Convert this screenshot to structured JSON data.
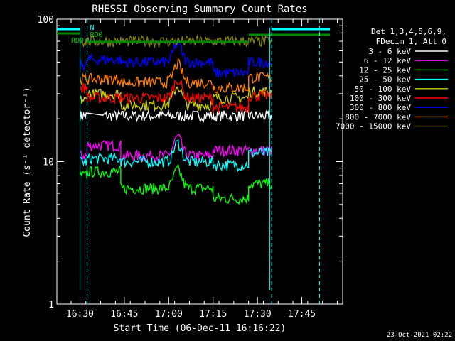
{
  "chart_data": {
    "type": "line",
    "title": "RHESSI Observing Summary Count Rates",
    "xlabel": "Start Time (06-Dec-11 16:16:22)",
    "ylabel": "Count Rate (s⁻¹ detector⁻¹)",
    "yscale": "log",
    "ylim": [
      1,
      100
    ],
    "xlim_minutes": [
      16.37,
      17.98
    ],
    "x_ticks": [
      "16:30",
      "16:45",
      "17:00",
      "17:15",
      "17:30",
      "17:45"
    ],
    "x_tick_values": [
      16.5,
      16.75,
      17.0,
      17.25,
      17.5,
      17.75
    ],
    "y_ticks": [
      "1",
      "10",
      "100"
    ],
    "y_tick_values": [
      1,
      10,
      100
    ],
    "legend": {
      "header": [
        "Det 1,3,4,5,6,9,",
        "FDecim 1, Att 0"
      ],
      "placement": "right"
    },
    "annotations": [
      {
        "text": "N",
        "color": "#00ffff"
      },
      {
        "text": "RD0",
        "color": "#00cc00"
      },
      {
        "text": "RD0",
        "color": "#00cc00"
      }
    ],
    "timestamp": "23-Oct-2021 02:22",
    "series": [
      {
        "name": "3 - 6 keV",
        "color": "#ffffff",
        "segments": [
          [
            16.5,
            16.54,
            21
          ],
          [
            16.63,
            16.73,
            21
          ],
          [
            16.73,
            17.25,
            21
          ],
          [
            17.25,
            17.45,
            21
          ],
          [
            17.45,
            17.55,
            21
          ],
          [
            17.55,
            17.58,
            21
          ]
        ]
      },
      {
        "name": "6 - 12 keV",
        "color": "#ff00ff",
        "segments": [
          [
            16.5,
            16.54,
            11
          ],
          [
            16.54,
            16.73,
            13
          ],
          [
            16.73,
            17.25,
            11
          ],
          [
            17.25,
            17.45,
            12
          ],
          [
            17.45,
            17.58,
            12
          ]
        ]
      },
      {
        "name": "12 - 25 keV",
        "color": "#00ff00",
        "segments": [
          [
            16.5,
            16.54,
            8
          ],
          [
            16.54,
            16.73,
            8.5
          ],
          [
            16.73,
            17.25,
            6.5
          ],
          [
            17.25,
            17.45,
            5.5
          ],
          [
            17.45,
            17.58,
            7
          ]
        ]
      },
      {
        "name": "25 - 50 keV",
        "color": "#00ffff",
        "segments": [
          [
            16.5,
            16.54,
            10
          ],
          [
            16.54,
            16.73,
            10.5
          ],
          [
            16.73,
            17.25,
            10
          ],
          [
            17.25,
            17.45,
            9.5
          ],
          [
            17.45,
            17.58,
            11.5
          ]
        ]
      },
      {
        "name": "50 - 100 keV",
        "color": "#cccc00",
        "segments": [
          [
            16.5,
            16.54,
            27
          ],
          [
            16.54,
            16.73,
            30
          ],
          [
            16.73,
            17.25,
            25
          ],
          [
            17.25,
            17.45,
            28
          ],
          [
            17.45,
            17.58,
            31
          ]
        ]
      },
      {
        "name": "100 - 300 keV",
        "color": "#ff0000",
        "segments": [
          [
            16.5,
            16.54,
            33
          ],
          [
            16.54,
            16.73,
            28
          ],
          [
            16.73,
            17.25,
            28
          ],
          [
            17.25,
            17.45,
            24
          ],
          [
            17.45,
            17.58,
            29
          ]
        ]
      },
      {
        "name": "300 - 800 keV",
        "color": "#0000ff",
        "segments": [
          [
            16.5,
            16.54,
            48
          ],
          [
            16.54,
            16.73,
            52
          ],
          [
            16.73,
            17.25,
            50
          ],
          [
            17.25,
            17.45,
            42
          ],
          [
            17.45,
            17.58,
            50
          ]
        ]
      },
      {
        "name": "800 - 7000 keV",
        "color": "#ff8000",
        "segments": [
          [
            16.5,
            16.54,
            38
          ],
          [
            16.54,
            16.73,
            38
          ],
          [
            16.73,
            17.25,
            36
          ],
          [
            17.25,
            17.45,
            33
          ],
          [
            17.45,
            17.58,
            39
          ]
        ]
      },
      {
        "name": "7000 - 15000 keV",
        "color": "#808000",
        "segments": [
          [
            16.5,
            16.54,
            70
          ],
          [
            16.54,
            16.73,
            70
          ],
          [
            16.73,
            17.25,
            70
          ],
          [
            17.25,
            17.45,
            70
          ],
          [
            17.45,
            17.58,
            70
          ]
        ]
      }
    ],
    "flare_peak": {
      "time": 17.05,
      "note": "peak near 17:03"
    }
  }
}
